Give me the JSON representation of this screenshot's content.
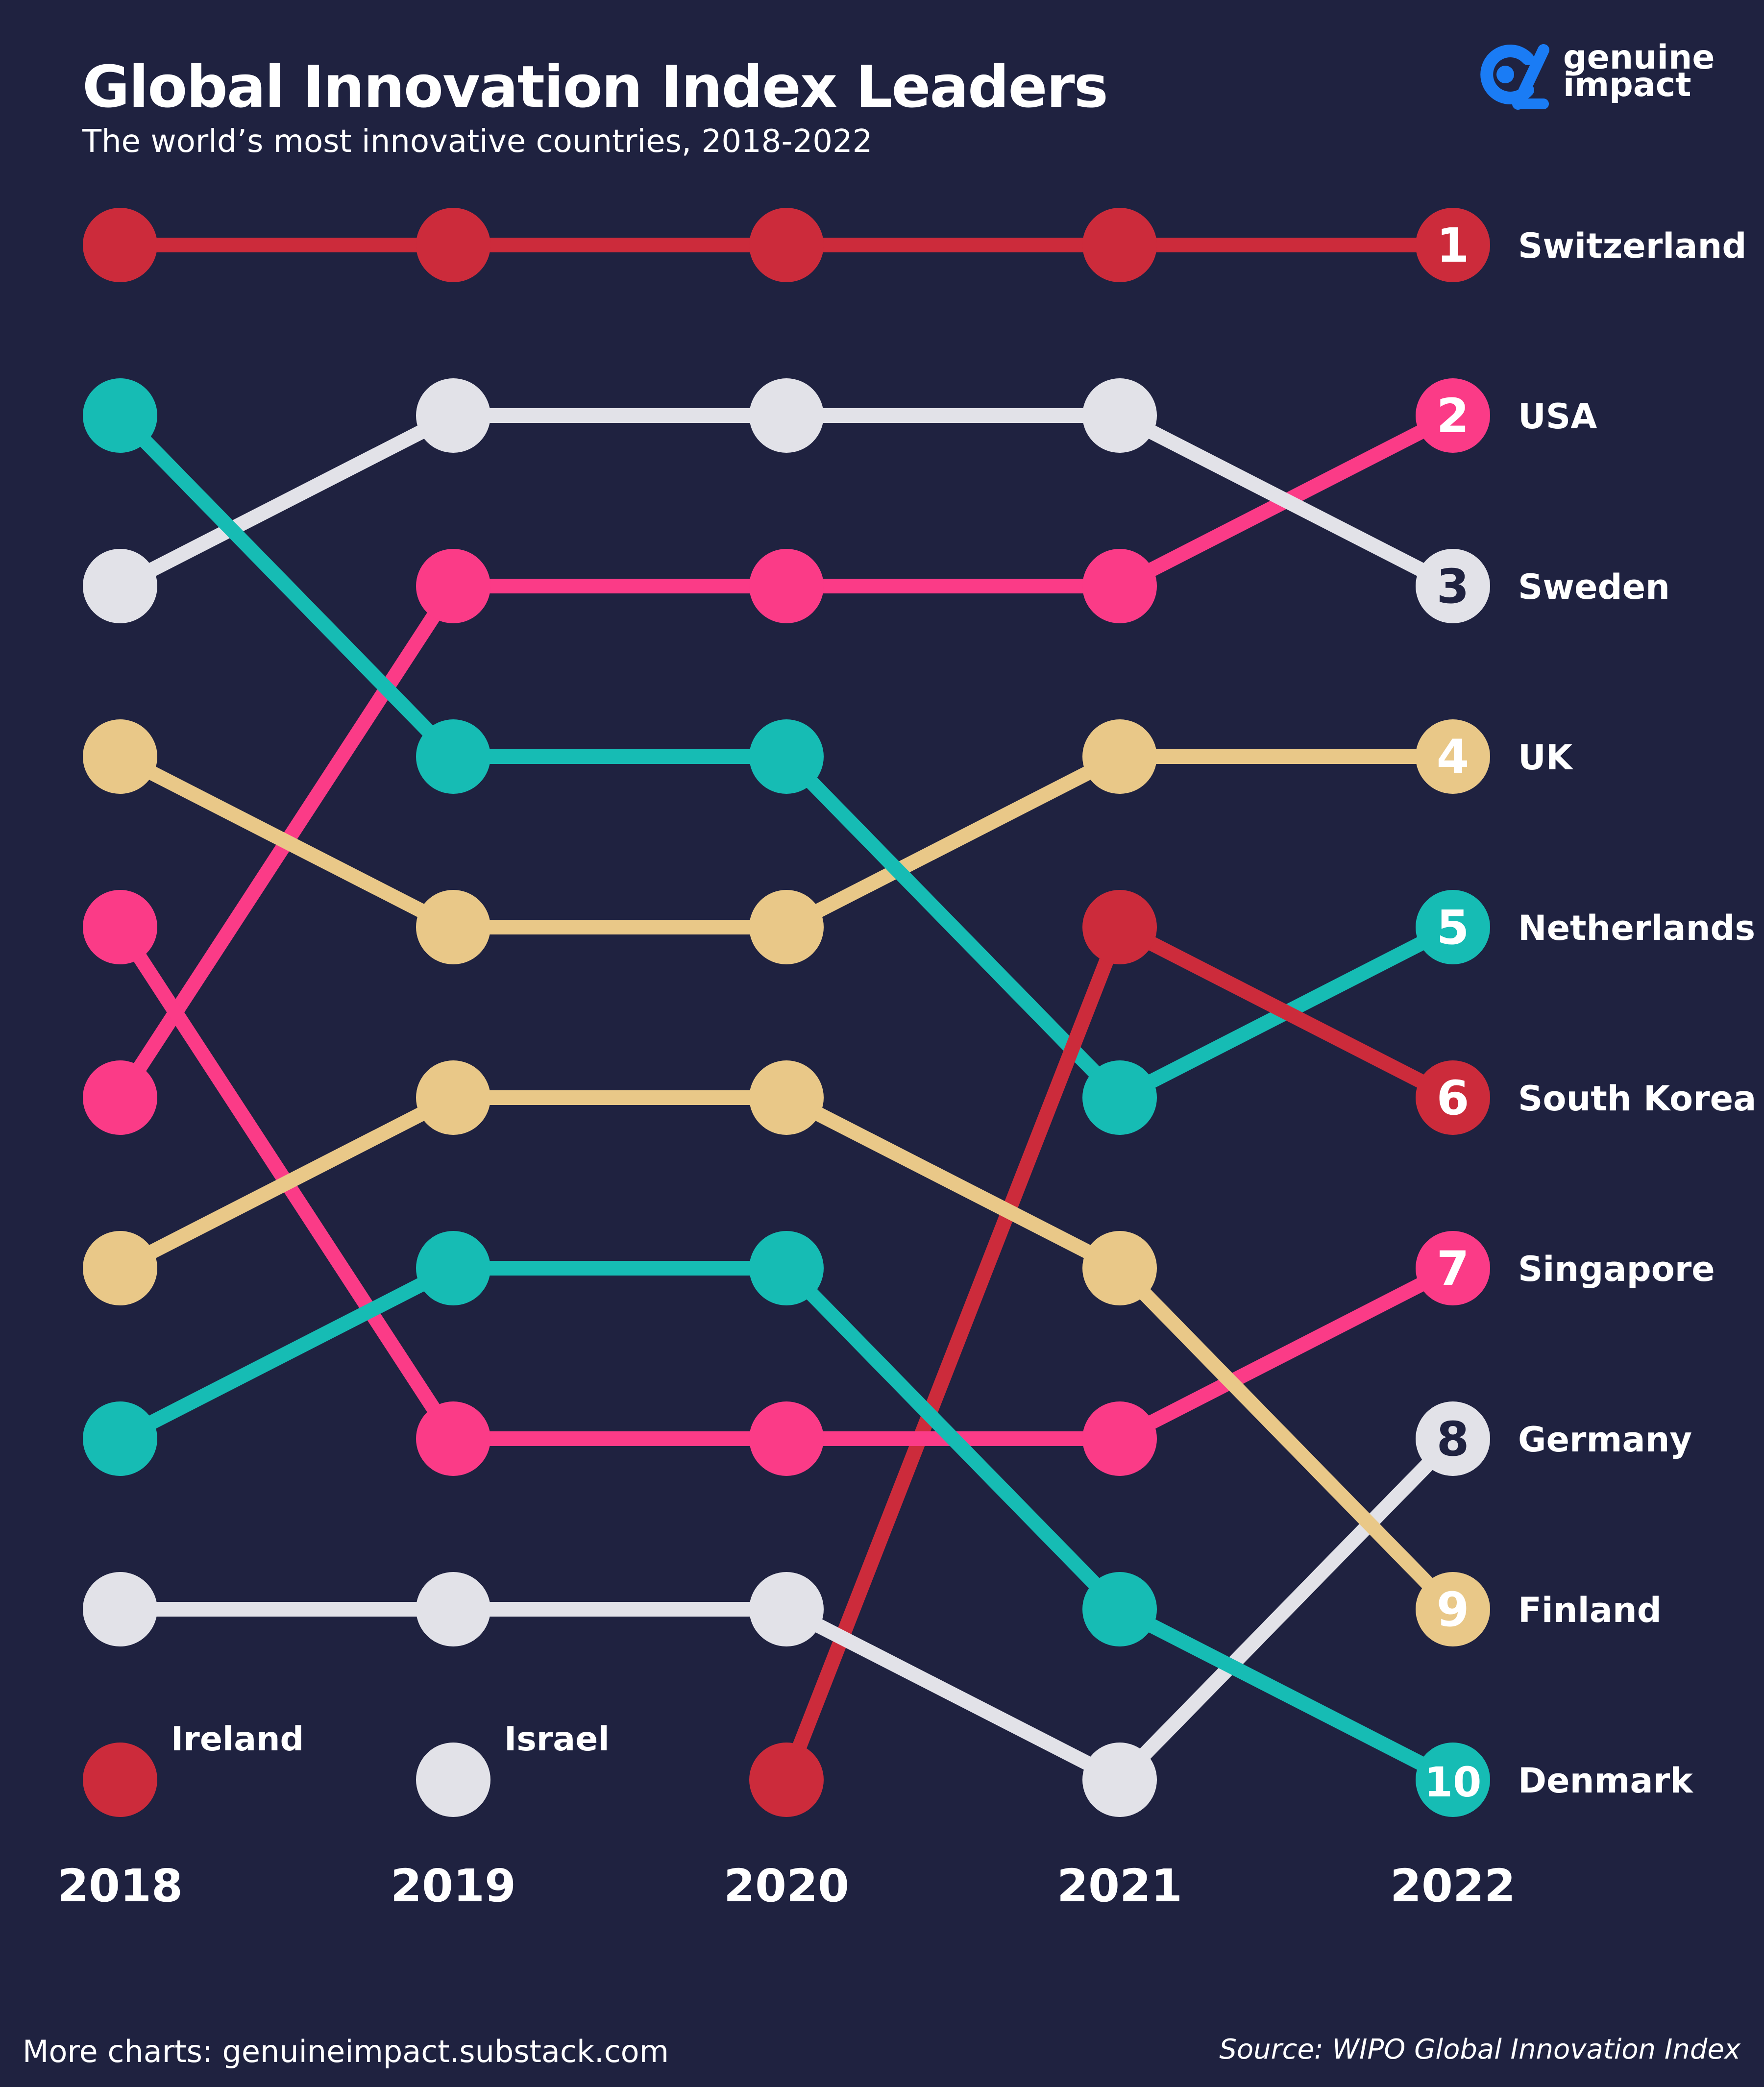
{
  "header": {
    "title": "Global Innovation Index Leaders",
    "subtitle": "The world’s most innovative countries, 2018-2022"
  },
  "logo": {
    "line1": "genuine",
    "line2": "impact",
    "icon": "genuine-impact-logo-icon",
    "color": "#1a7cf5"
  },
  "footer": {
    "left": "More charts: genuineimpact.substack.com",
    "right": "Source: WIPO Global Innovation Index"
  },
  "colors": {
    "background": "#1f2240",
    "red": "#cc2b3b",
    "pink": "#fb3b87",
    "teal": "#16bcb4",
    "cream": "#e9c888",
    "white": "#e2e2e8"
  },
  "chart_data": {
    "type": "line",
    "subtype": "bump",
    "x": [
      "2018",
      "2019",
      "2020",
      "2021",
      "2022"
    ],
    "y_axis": "rank",
    "ylim": [
      1,
      10
    ],
    "inverted": true,
    "series": [
      {
        "name": "Switzerland",
        "color": "#cc2b3b",
        "ranks": [
          1,
          1,
          1,
          1,
          1
        ]
      },
      {
        "name": "USA",
        "color": "#fb3b87",
        "ranks": [
          6,
          3,
          3,
          3,
          2
        ]
      },
      {
        "name": "Sweden",
        "color": "#e2e2e8",
        "ranks": [
          3,
          2,
          2,
          2,
          3
        ]
      },
      {
        "name": "UK",
        "color": "#e9c888",
        "ranks": [
          4,
          5,
          5,
          4,
          4
        ]
      },
      {
        "name": "Netherlands",
        "color": "#16bcb4",
        "ranks": [
          2,
          4,
          4,
          6,
          5
        ]
      },
      {
        "name": "South Korea",
        "color": "#cc2b3b",
        "ranks": [
          null,
          null,
          10,
          5,
          6
        ]
      },
      {
        "name": "Singapore",
        "color": "#fb3b87",
        "ranks": [
          5,
          8,
          8,
          8,
          7
        ]
      },
      {
        "name": "Germany",
        "color": "#e2e2e8",
        "ranks": [
          9,
          9,
          9,
          10,
          8
        ]
      },
      {
        "name": "Finland",
        "color": "#e9c888",
        "ranks": [
          7,
          6,
          6,
          7,
          9
        ]
      },
      {
        "name": "Denmark",
        "color": "#16bcb4",
        "ranks": [
          8,
          7,
          7,
          9,
          10
        ]
      },
      {
        "name": "Ireland",
        "color": "#cc2b3b",
        "ranks": [
          10,
          null,
          null,
          null,
          null
        ]
      },
      {
        "name": "Israel",
        "color": "#e2e2e8",
        "ranks": [
          null,
          10,
          null,
          null,
          null
        ]
      }
    ]
  }
}
